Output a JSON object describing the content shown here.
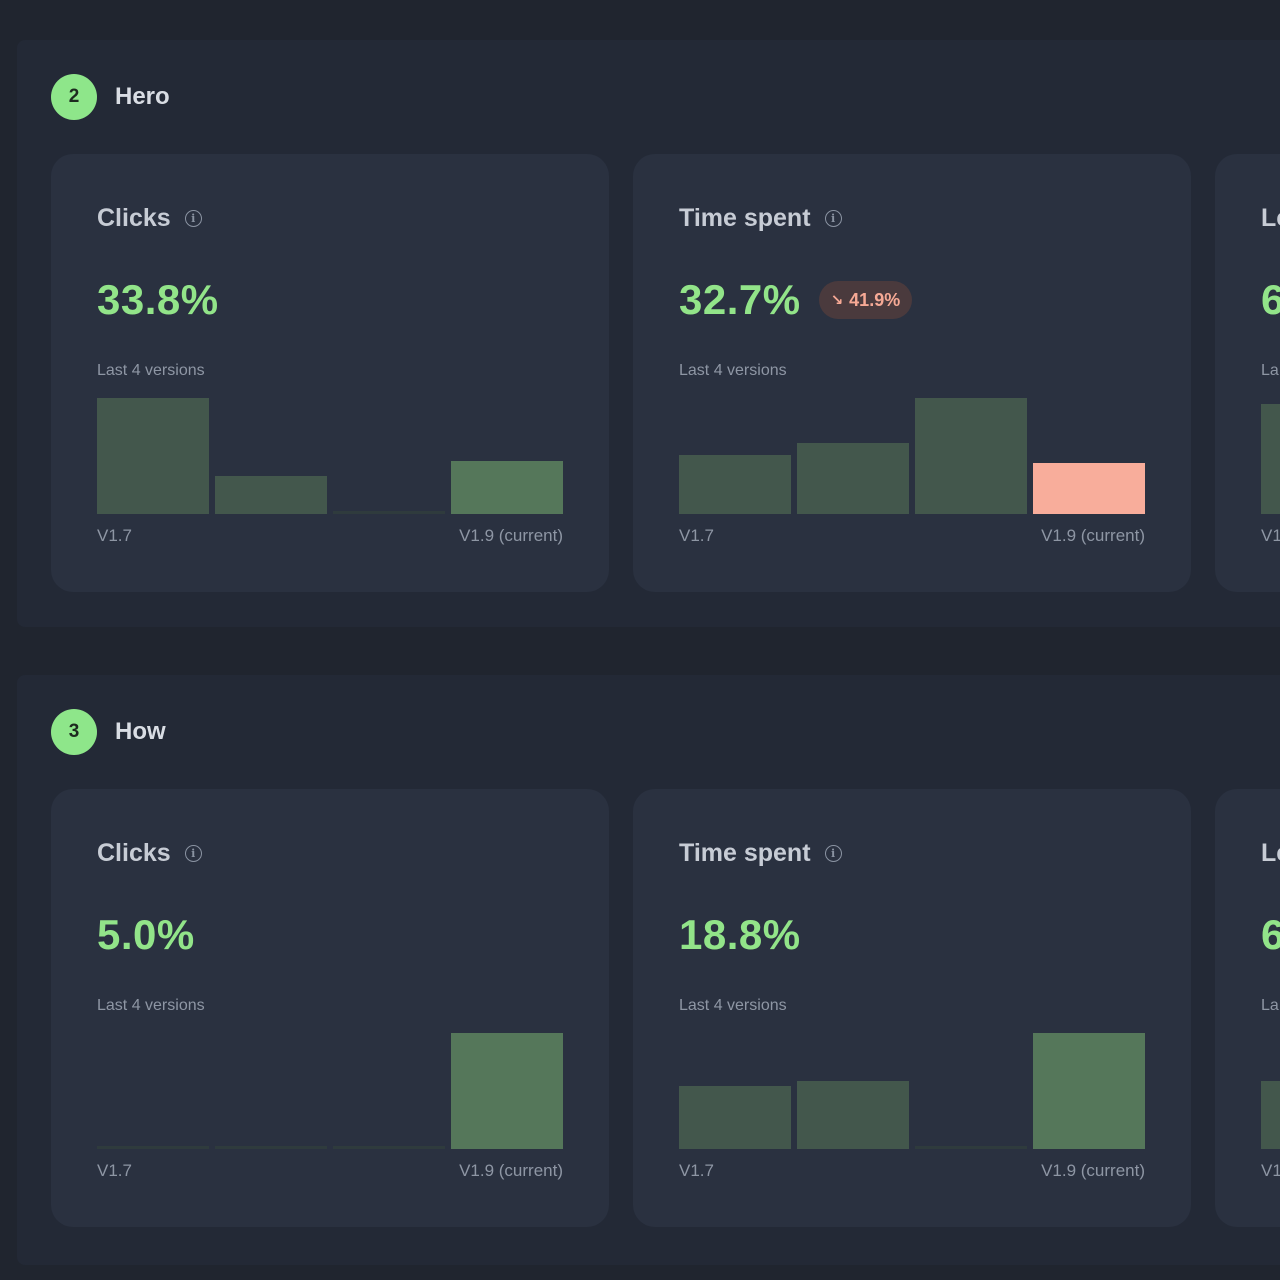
{
  "sections": [
    {
      "number": "2",
      "title": "Hero",
      "cards": [
        {
          "title": "Clicks",
          "value": "33.8%",
          "delta": "",
          "caption": "Last 4 versions",
          "x_start": "V1.7",
          "x_end": "V1.9 (current)",
          "bars": [
            1.0,
            0.33,
            0.0,
            0.46
          ],
          "current_status": "good"
        },
        {
          "title": "Time spent",
          "value": "32.7%",
          "delta": "41.9%",
          "delta_icon": "arrow-down-right-icon",
          "caption": "Last 4 versions",
          "x_start": "V1.7",
          "x_end": "V1.9 (current)",
          "bars": [
            0.51,
            0.61,
            1.0,
            0.44
          ],
          "current_status": "bad"
        },
        {
          "title": "Le",
          "value": "6",
          "delta": "",
          "caption": "La",
          "x_start": "V1",
          "x_end": "",
          "bars": [
            0.95
          ],
          "current_status": "good"
        }
      ]
    },
    {
      "number": "3",
      "title": "How",
      "cards": [
        {
          "title": "Clicks",
          "value": "5.0%",
          "delta": "",
          "caption": "Last 4 versions",
          "x_start": "V1.7",
          "x_end": "V1.9 (current)",
          "bars": [
            0.0,
            0.0,
            0.0,
            1.0
          ],
          "current_status": "good"
        },
        {
          "title": "Time spent",
          "value": "18.8%",
          "delta": "",
          "caption": "Last 4 versions",
          "x_start": "V1.7",
          "x_end": "V1.9 (current)",
          "bars": [
            0.54,
            0.59,
            0.0,
            1.0
          ],
          "current_status": "good"
        },
        {
          "title": "Le",
          "value": "6",
          "delta": "",
          "caption": "La",
          "x_start": "V1",
          "x_end": "",
          "bars": [
            0.59
          ],
          "current_status": "good"
        }
      ]
    }
  ],
  "colors": {
    "accent_green": "#92e489",
    "bar_past": "#43574c",
    "bar_current": "#55775a",
    "bar_current_bad": "#f8ad9b",
    "delta_bad_text": "#f6a995"
  }
}
